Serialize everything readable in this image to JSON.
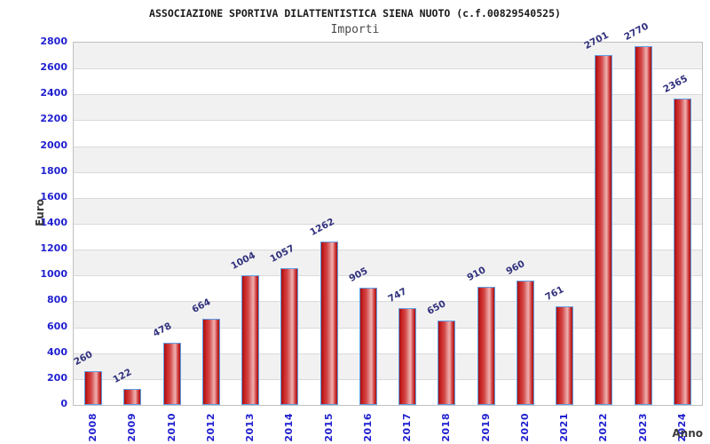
{
  "header": {
    "title": "ASSOCIAZIONE SPORTIVA DILATTENTISTICA SIENA NUOTO (c.f.00829540525)",
    "subtitle": "Importi"
  },
  "chart_data": {
    "type": "bar",
    "title": "ASSOCIAZIONE SPORTIVA DILATTENTISTICA SIENA NUOTO (c.f.00829540525)",
    "subtitle": "Importi",
    "xlabel": "Anno",
    "ylabel": "Euro",
    "categories": [
      "2008",
      "2009",
      "2010",
      "2012",
      "2013",
      "2014",
      "2015",
      "2016",
      "2017",
      "2018",
      "2019",
      "2020",
      "2021",
      "2022",
      "2023",
      "2024"
    ],
    "values": [
      260,
      122,
      478,
      664,
      1004,
      1057,
      1262,
      905,
      747,
      650,
      910,
      960,
      761,
      2701,
      2770,
      2365
    ],
    "ylim": [
      0,
      2800
    ],
    "ytick_step": 200,
    "legend": "none",
    "grid": "horizontal-bands-alternating",
    "colors": {
      "bar_fill_dark": "#a40f0f",
      "bar_fill_light": "#efadad",
      "bar_border": "#5f9de4",
      "tick_label": "#1f1fd0",
      "value_label": "#31317e",
      "band_gray": "#f1f1f1",
      "band_white": "#ffffff",
      "gridline": "#dadada",
      "axis_title": "#3a3a3a"
    }
  }
}
